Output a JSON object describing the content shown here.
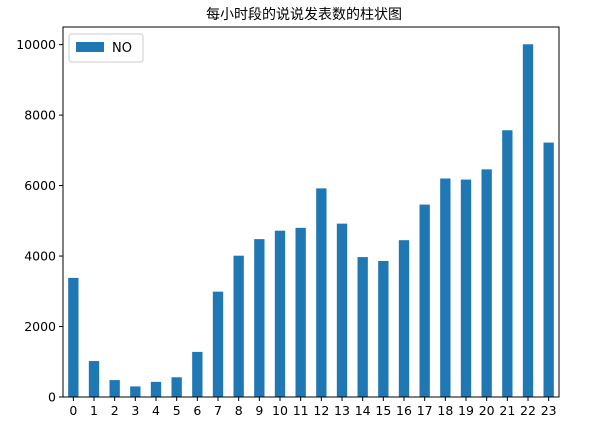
{
  "chart_data": {
    "type": "bar",
    "title": "每小时段的说说发表数的柱状图",
    "xlabel": "",
    "ylabel": "",
    "categories": [
      "0",
      "1",
      "2",
      "3",
      "4",
      "5",
      "6",
      "7",
      "8",
      "9",
      "10",
      "11",
      "12",
      "13",
      "14",
      "15",
      "16",
      "17",
      "18",
      "19",
      "20",
      "21",
      "22",
      "23"
    ],
    "series": [
      {
        "name": "NO",
        "color": "#1f77b4",
        "values": [
          3380,
          1020,
          480,
          300,
          430,
          560,
          1280,
          2990,
          4010,
          4480,
          4720,
          4800,
          5920,
          4920,
          3970,
          3860,
          4450,
          5460,
          6200,
          6170,
          6460,
          7570,
          10010,
          7220
        ]
      }
    ],
    "ylim": [
      0,
      10500
    ],
    "yticks": [
      0,
      2000,
      4000,
      6000,
      8000,
      10000
    ],
    "grid": false,
    "legend_position": "upper-left"
  }
}
